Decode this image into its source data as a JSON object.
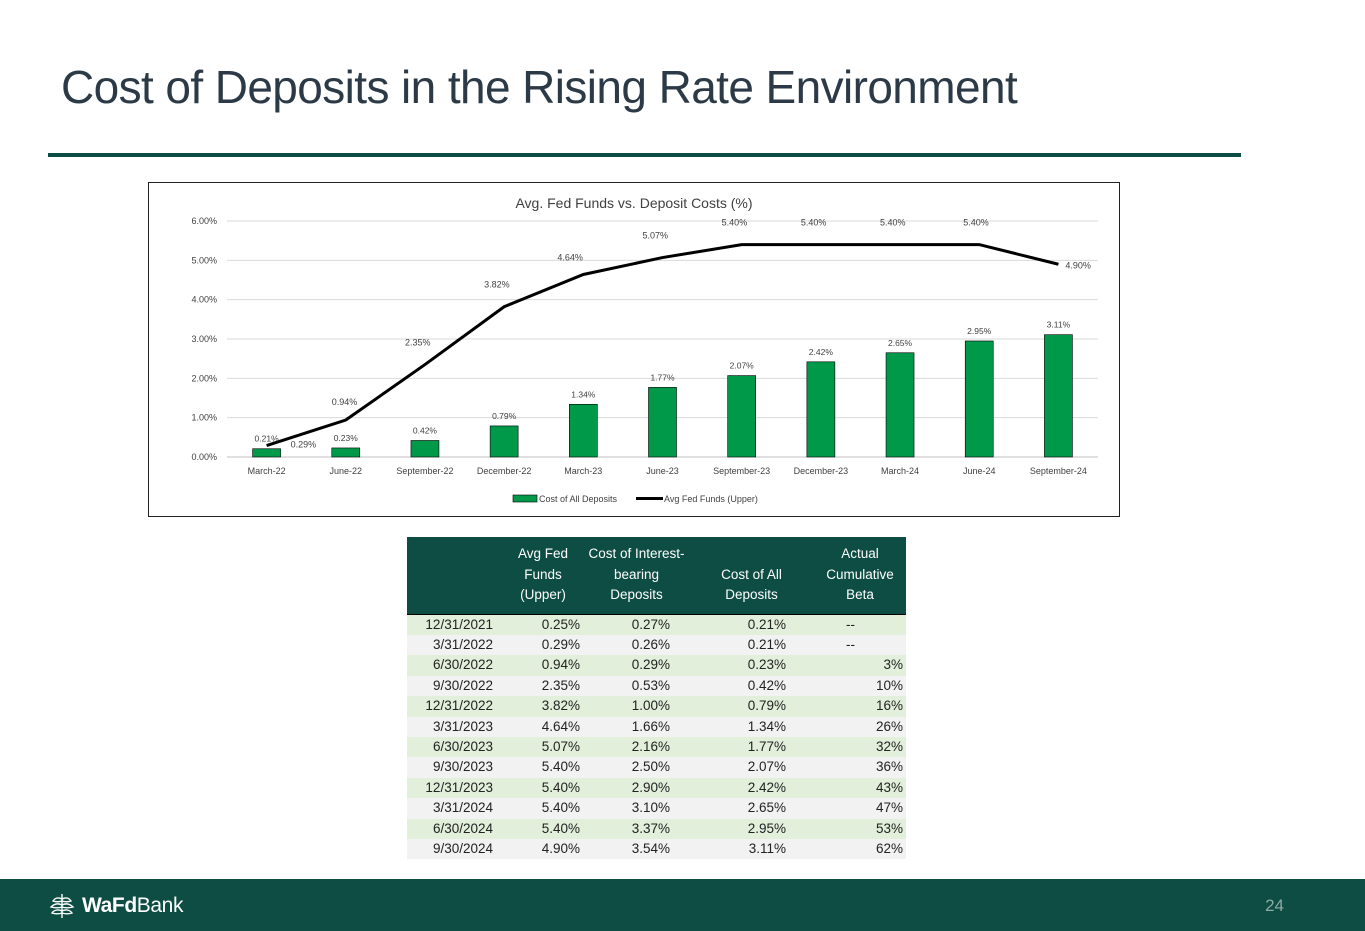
{
  "page": {
    "title": "Cost of Deposits in the Rising Rate Environment",
    "page_number": "24",
    "brand_bold": "WaFd",
    "brand_regular": "Bank"
  },
  "colors": {
    "brand_green": "#0d4d43",
    "bar_green": "#00994a",
    "line_black": "#000000",
    "row_green": "#e2efda",
    "row_grey": "#f2f2f2"
  },
  "chart_data": {
    "type": "bar",
    "title": "Avg. Fed Funds vs. Deposit Costs (%)",
    "categories": [
      "March-22",
      "June-22",
      "September-22",
      "December-22",
      "March-23",
      "June-23",
      "September-23",
      "December-23",
      "March-24",
      "June-24",
      "September-24"
    ],
    "series": [
      {
        "name": "Cost of All Deposits",
        "kind": "bar",
        "values": [
          0.21,
          0.23,
          0.42,
          0.79,
          1.34,
          1.77,
          2.07,
          2.42,
          2.65,
          2.95,
          3.11
        ],
        "labels": [
          "0.21%",
          "0.23%",
          "0.42%",
          "0.79%",
          "1.34%",
          "1.77%",
          "2.07%",
          "2.42%",
          "2.65%",
          "2.95%",
          "3.11%"
        ]
      },
      {
        "name": "Avg Fed Funds (Upper)",
        "kind": "line",
        "values": [
          0.29,
          0.94,
          2.35,
          3.82,
          4.64,
          5.07,
          5.4,
          5.4,
          5.4,
          5.4,
          4.9
        ],
        "labels": [
          "0.29%",
          "0.94%",
          "2.35%",
          "3.82%",
          "4.64%",
          "5.07%",
          "5.40%",
          "5.40%",
          "5.40%",
          "5.40%",
          "4.90%"
        ]
      }
    ],
    "yticks": [
      "0.00%",
      "1.00%",
      "2.00%",
      "3.00%",
      "4.00%",
      "5.00%",
      "6.00%"
    ],
    "ylim": [
      0,
      6
    ],
    "grid": true,
    "legend": "bottom",
    "xlabel": "",
    "ylabel": ""
  },
  "table": {
    "headers": [
      "",
      "Avg Fed Funds (Upper)",
      "Cost of Interest-bearing Deposits",
      "Cost of All Deposits",
      "Actual Cumulative Beta"
    ],
    "header_lines": [
      [],
      [
        "Avg Fed",
        "Funds",
        "(Upper)"
      ],
      [
        "Cost of Interest-",
        "bearing",
        "Deposits"
      ],
      [
        "Cost of All Deposits"
      ],
      [
        "Actual",
        "Cumulative",
        "Beta"
      ]
    ],
    "rows": [
      [
        "12/31/2021",
        "0.25%",
        "0.27%",
        "0.21%",
        "--"
      ],
      [
        "3/31/2022",
        "0.29%",
        "0.26%",
        "0.21%",
        "--"
      ],
      [
        "6/30/2022",
        "0.94%",
        "0.29%",
        "0.23%",
        "3%"
      ],
      [
        "9/30/2022",
        "2.35%",
        "0.53%",
        "0.42%",
        "10%"
      ],
      [
        "12/31/2022",
        "3.82%",
        "1.00%",
        "0.79%",
        "16%"
      ],
      [
        "3/31/2023",
        "4.64%",
        "1.66%",
        "1.34%",
        "26%"
      ],
      [
        "6/30/2023",
        "5.07%",
        "2.16%",
        "1.77%",
        "32%"
      ],
      [
        "9/30/2023",
        "5.40%",
        "2.50%",
        "2.07%",
        "36%"
      ],
      [
        "12/31/2023",
        "5.40%",
        "2.90%",
        "2.42%",
        "43%"
      ],
      [
        "3/31/2024",
        "5.40%",
        "3.10%",
        "2.65%",
        "47%"
      ],
      [
        "6/30/2024",
        "5.40%",
        "3.37%",
        "2.95%",
        "53%"
      ],
      [
        "9/30/2024",
        "4.90%",
        "3.54%",
        "3.11%",
        "62%"
      ]
    ]
  }
}
